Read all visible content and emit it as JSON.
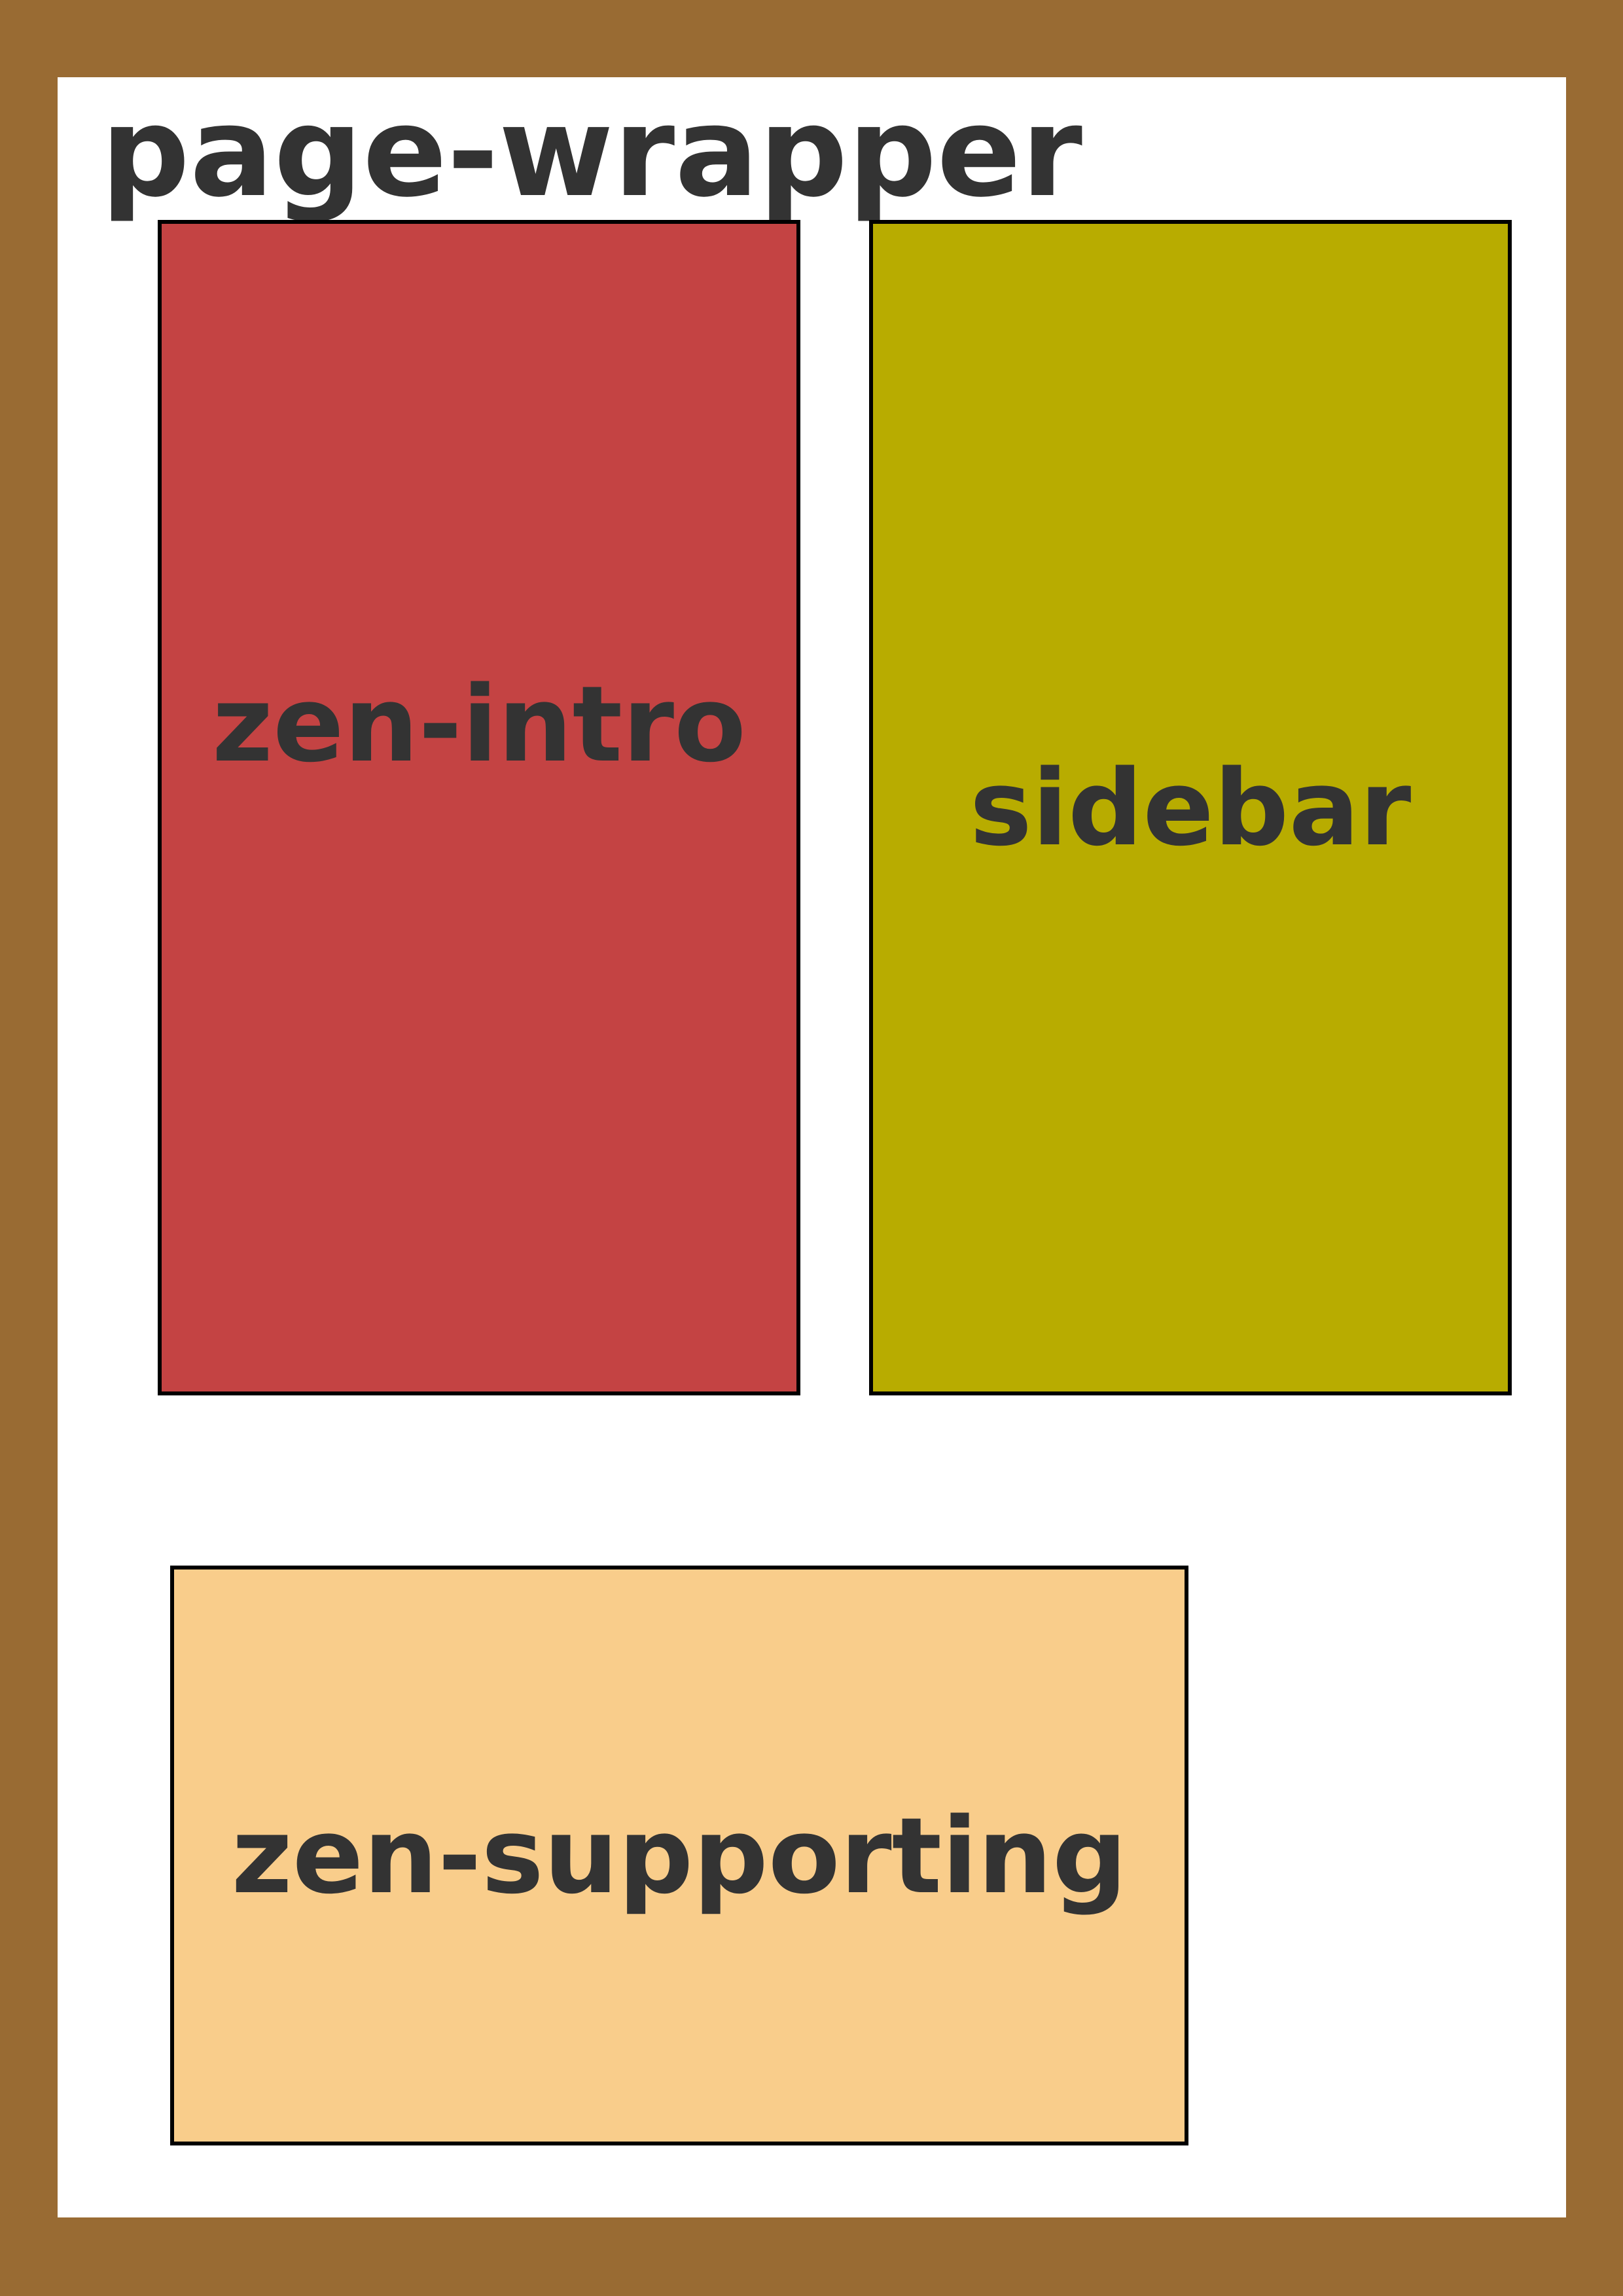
{
  "diagram": {
    "wrapper": {
      "label": "page-wrapper",
      "border_color": "#996b33",
      "fill_color": "#ffffff"
    },
    "regions": [
      {
        "label": "zen-intro",
        "fill_color": "#c44343"
      },
      {
        "label": "sidebar",
        "fill_color": "#b8ac00"
      },
      {
        "label": "zen-supporting",
        "fill_color": "#f9cd8b"
      }
    ],
    "text_color": "#333333"
  }
}
